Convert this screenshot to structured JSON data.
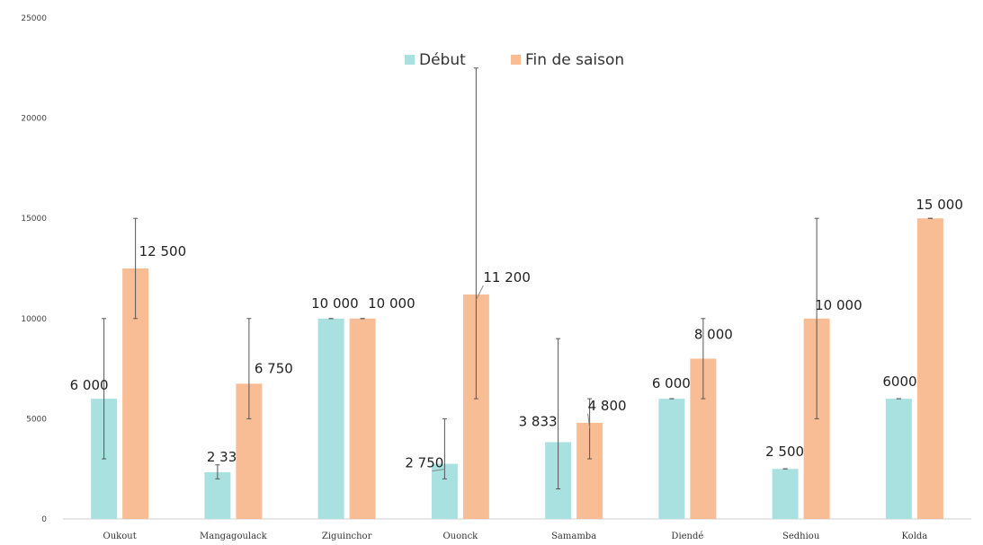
{
  "chart_data": {
    "type": "bar",
    "categories": [
      "Oukout",
      "Mangagoulack",
      "Ziguinchor",
      "Ouonck",
      "Samamba",
      "Diendé",
      "Sedhiou",
      "Kolda"
    ],
    "series": [
      {
        "name": "Début",
        "color": "#a9e1e1",
        "values": [
          6000,
          2333,
          10000,
          2750,
          3833,
          6000,
          2500,
          6000
        ],
        "labels": [
          "6 000",
          "2 333",
          "10 000",
          "2 750",
          "3 833",
          "6 000",
          "2 500",
          "6000"
        ],
        "error_low": [
          3000,
          2000,
          10000,
          2000,
          1500,
          6000,
          2500,
          6000
        ],
        "error_high": [
          10000,
          2700,
          10000,
          5000,
          9000,
          6000,
          2500,
          6000
        ]
      },
      {
        "name": "Fin de saison",
        "color": "#f8bd94",
        "values": [
          12500,
          6750,
          10000,
          11200,
          4800,
          8000,
          10000,
          15000
        ],
        "labels": [
          "12 500",
          "6 750",
          "10 000",
          "11 200",
          "4 800",
          "8 000",
          "10 000",
          "15 000"
        ],
        "error_low": [
          10000,
          5000,
          10000,
          6000,
          3000,
          6000,
          5000,
          15000
        ],
        "error_high": [
          15000,
          10000,
          10000,
          22500,
          6000,
          10000,
          15000,
          15000
        ]
      }
    ],
    "ylim": [
      0,
      25000
    ],
    "yticks": [
      "0",
      "5000",
      "10000",
      "15000",
      "20000",
      "25000"
    ],
    "title": "",
    "xlabel": "",
    "ylabel": "",
    "legend_position": "top-center",
    "grid": false
  }
}
